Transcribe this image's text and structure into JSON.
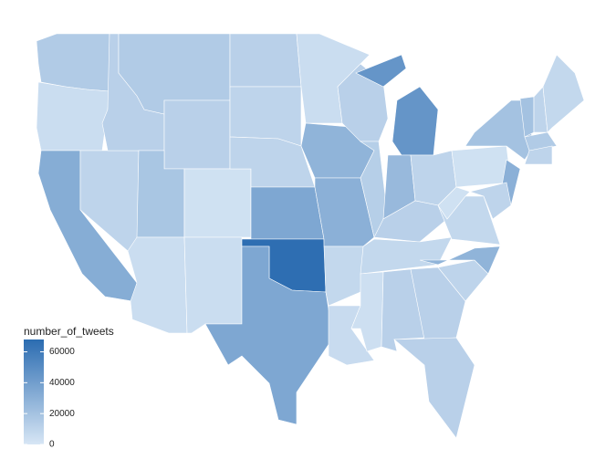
{
  "chart_data": {
    "type": "choropleth",
    "legend_title": "number_of_tweets",
    "values": [
      15000,
      5000,
      32000,
      10000,
      12000,
      15000,
      12000,
      18000,
      3000,
      5000,
      5000,
      12000,
      10000,
      10000,
      35000,
      67000,
      35000,
      5000,
      28000,
      30000,
      8000,
      6000,
      12000,
      13000,
      45000,
      25000,
      10000,
      12000,
      8000,
      4000,
      12000,
      12000,
      12000,
      10000,
      28000,
      8000,
      3000,
      3000,
      20000,
      30000,
      10000,
      20000,
      10000,
      8000,
      15000,
      10000
    ],
    "low_color": "#d7e6f5",
    "high_color": "#2b6cb1",
    "colorbar_lim": [
      0,
      68000
    ],
    "colorbar_ticks": [
      0,
      20000,
      40000,
      60000
    ]
  }
}
